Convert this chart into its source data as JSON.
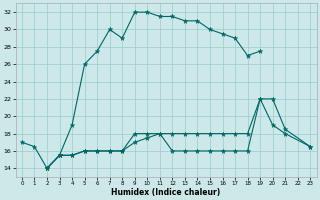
{
  "title": "",
  "xlabel": "Humidex (Indice chaleur)",
  "bg_color": "#cce8e8",
  "grid_color": "#99cccc",
  "line_color": "#006666",
  "xlim": [
    -0.5,
    23.5
  ],
  "ylim": [
    13,
    33
  ],
  "xticks": [
    0,
    1,
    2,
    3,
    4,
    5,
    6,
    7,
    8,
    9,
    10,
    11,
    12,
    13,
    14,
    15,
    16,
    17,
    18,
    19,
    20,
    21,
    22,
    23
  ],
  "yticks": [
    14,
    16,
    18,
    20,
    22,
    24,
    26,
    28,
    30,
    32
  ],
  "curve1_x": [
    0,
    1,
    2,
    3,
    4,
    5,
    6,
    7,
    8,
    9,
    10,
    11,
    12,
    13,
    14,
    15,
    16,
    17,
    18,
    19
  ],
  "curve1_y": [
    17,
    16.5,
    14,
    15.5,
    19,
    26,
    27.5,
    30,
    29,
    32,
    32,
    31.5,
    31.5,
    31,
    31,
    30,
    29.5,
    29,
    27,
    27.5
  ],
  "curve2_x": [
    2,
    3,
    4,
    5,
    6,
    7,
    8,
    9,
    10,
    11,
    12,
    13,
    14,
    15,
    16,
    17,
    18,
    19,
    20,
    21,
    23
  ],
  "curve2_y": [
    14,
    15.5,
    15.5,
    16,
    16,
    16,
    16,
    18,
    18,
    18,
    16,
    16,
    16,
    16,
    16,
    16,
    16,
    22,
    19,
    18,
    16.5
  ],
  "curve3_x": [
    2,
    3,
    4,
    5,
    6,
    7,
    8,
    9,
    10,
    11,
    12,
    13,
    14,
    15,
    16,
    17,
    18,
    19,
    20,
    21,
    23
  ],
  "curve3_y": [
    14,
    15.5,
    15.5,
    16,
    16,
    16,
    16,
    17,
    17.5,
    18,
    18,
    18,
    18,
    18,
    18,
    18,
    18,
    22,
    22,
    18.5,
    16.5
  ]
}
